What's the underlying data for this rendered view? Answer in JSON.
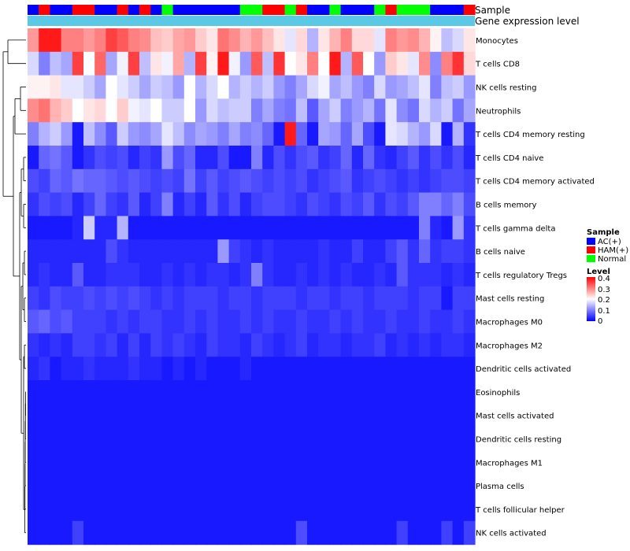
{
  "chart_data": {
    "type": "heatmap",
    "title": "",
    "annotation_rows": [
      "Sample",
      "Gene expression level"
    ],
    "sample_groups": [
      "AC(+)",
      "HAM(+)",
      "AC(+)",
      "AC(+)",
      "HAM(+)",
      "HAM(+)",
      "AC(+)",
      "AC(+)",
      "HAM(+)",
      "AC(+)",
      "HAM(+)",
      "AC(+)",
      "Normal",
      "AC(+)",
      "AC(+)",
      "AC(+)",
      "AC(+)",
      "AC(+)",
      "AC(+)",
      "Normal",
      "Normal",
      "HAM(+)",
      "HAM(+)",
      "Normal",
      "HAM(+)",
      "AC(+)",
      "AC(+)",
      "Normal",
      "AC(+)",
      "AC(+)",
      "AC(+)",
      "Normal",
      "HAM(+)",
      "Normal",
      "Normal",
      "Normal",
      "AC(+)",
      "AC(+)",
      "AC(+)",
      "HAM(+)"
    ],
    "legend": {
      "sample_title": "Sample",
      "sample_entries": [
        {
          "label": "AC(+)",
          "color": "#0000ff"
        },
        {
          "label": "HAM(+)",
          "color": "#ff0000"
        },
        {
          "label": "Normal",
          "color": "#00ff00"
        }
      ],
      "level_title": "Level",
      "level_ticks": [
        "0.4",
        "0.3",
        "0.2",
        "0.1",
        "0"
      ],
      "level_range": [
        0,
        0.4
      ]
    },
    "colors": {
      "low": "#0000ff",
      "mid": "#ffffff",
      "high": "#ff0000",
      "expression_bar": "#5bc8e6",
      "dendrogram": "#000000"
    },
    "rows": [
      "Monocytes",
      "T cells CD8",
      "NK cells resting",
      "Neutrophils",
      "T cells CD4 memory resting",
      "T cells CD4 naive",
      "T cells CD4 memory activated",
      "B cells memory",
      "T cells gamma delta",
      "B cells naive",
      "T cells regulatory  Tregs",
      "Mast cells resting",
      "Macrophages M0",
      "Macrophages M2",
      "Dendritic cells activated",
      "Eosinophils",
      "Mast cells activated",
      "Dendritic cells resting",
      "Macrophages M1",
      "Plasma cells",
      "T cells follicular helper",
      "NK cells activated"
    ],
    "values": [
      [
        0.28,
        0.38,
        0.38,
        0.3,
        0.3,
        0.28,
        0.3,
        0.35,
        0.33,
        0.3,
        0.29,
        0.25,
        0.24,
        0.27,
        0.28,
        0.24,
        0.22,
        0.31,
        0.29,
        0.26,
        0.28,
        0.25,
        0.22,
        0.18,
        0.23,
        0.14,
        0.22,
        0.26,
        0.3,
        0.23,
        0.23,
        0.18,
        0.3,
        0.28,
        0.29,
        0.26,
        0.21,
        0.15,
        0.17,
        0.22
      ],
      [
        0.17,
        0.1,
        0.15,
        0.13,
        0.35,
        0.2,
        0.32,
        0.13,
        0.19,
        0.35,
        0.15,
        0.22,
        0.19,
        0.27,
        0.14,
        0.35,
        0.21,
        0.38,
        0.19,
        0.12,
        0.33,
        0.15,
        0.36,
        0.2,
        0.22,
        0.3,
        0.2,
        0.38,
        0.14,
        0.33,
        0.2,
        0.12,
        0.24,
        0.22,
        0.18,
        0.29,
        0.11,
        0.3,
        0.36,
        0.23
      ],
      [
        0.21,
        0.21,
        0.22,
        0.18,
        0.18,
        0.16,
        0.13,
        0.2,
        0.18,
        0.16,
        0.13,
        0.16,
        0.15,
        0.12,
        0.2,
        0.14,
        0.17,
        0.2,
        0.14,
        0.16,
        0.14,
        0.16,
        0.12,
        0.1,
        0.13,
        0.17,
        0.19,
        0.13,
        0.15,
        0.12,
        0.1,
        0.17,
        0.12,
        0.13,
        0.15,
        0.18,
        0.1,
        0.15,
        0.16,
        0.12
      ],
      [
        0.29,
        0.31,
        0.26,
        0.24,
        0.2,
        0.22,
        0.23,
        0.2,
        0.24,
        0.19,
        0.18,
        0.2,
        0.16,
        0.16,
        0.2,
        0.12,
        0.17,
        0.15,
        0.16,
        0.16,
        0.1,
        0.13,
        0.1,
        0.09,
        0.15,
        0.07,
        0.13,
        0.16,
        0.1,
        0.12,
        0.14,
        0.09,
        0.18,
        0.11,
        0.09,
        0.17,
        0.14,
        0.16,
        0.09,
        0.13
      ],
      [
        0.1,
        0.14,
        0.16,
        0.12,
        0.02,
        0.15,
        0.11,
        0.07,
        0.16,
        0.12,
        0.11,
        0.13,
        0.18,
        0.15,
        0.11,
        0.13,
        0.12,
        0.1,
        0.13,
        0.1,
        0.11,
        0.08,
        0.02,
        0.38,
        0.08,
        0.02,
        0.13,
        0.12,
        0.08,
        0.13,
        0.06,
        0.02,
        0.18,
        0.17,
        0.14,
        0.12,
        0.17,
        0.02,
        0.14,
        0.04
      ],
      [
        0.02,
        0.08,
        0.09,
        0.07,
        0.02,
        0.04,
        0.06,
        0.05,
        0.06,
        0.03,
        0.05,
        0.04,
        0.12,
        0.06,
        0.08,
        0.03,
        0.03,
        0.06,
        0.02,
        0.02,
        0.1,
        0.03,
        0.06,
        0.04,
        0.06,
        0.07,
        0.04,
        0.05,
        0.08,
        0.03,
        0.08,
        0.04,
        0.03,
        0.05,
        0.07,
        0.04,
        0.06,
        0.04,
        0.06,
        0.03
      ],
      [
        0.06,
        0.05,
        0.08,
        0.07,
        0.09,
        0.08,
        0.08,
        0.07,
        0.06,
        0.07,
        0.06,
        0.05,
        0.06,
        0.05,
        0.09,
        0.05,
        0.07,
        0.05,
        0.06,
        0.07,
        0.06,
        0.05,
        0.06,
        0.05,
        0.06,
        0.04,
        0.05,
        0.06,
        0.07,
        0.04,
        0.05,
        0.06,
        0.05,
        0.04,
        0.05,
        0.04,
        0.05,
        0.06,
        0.06,
        0.05
      ],
      [
        0.04,
        0.06,
        0.05,
        0.06,
        0.03,
        0.05,
        0.08,
        0.05,
        0.04,
        0.07,
        0.03,
        0.05,
        0.1,
        0.03,
        0.05,
        0.03,
        0.07,
        0.04,
        0.06,
        0.03,
        0.05,
        0.06,
        0.06,
        0.05,
        0.04,
        0.06,
        0.05,
        0.04,
        0.06,
        0.05,
        0.07,
        0.04,
        0.06,
        0.05,
        0.07,
        0.1,
        0.1,
        0.08,
        0.1,
        0.06
      ],
      [
        0.02,
        0.02,
        0.02,
        0.02,
        0.03,
        0.16,
        0.03,
        0.03,
        0.14,
        0.02,
        0.02,
        0.02,
        0.02,
        0.02,
        0.02,
        0.02,
        0.02,
        0.02,
        0.02,
        0.02,
        0.02,
        0.02,
        0.02,
        0.02,
        0.02,
        0.02,
        0.02,
        0.02,
        0.02,
        0.02,
        0.02,
        0.02,
        0.02,
        0.02,
        0.02,
        0.1,
        0.03,
        0.02,
        0.12,
        0.04
      ],
      [
        0.03,
        0.03,
        0.03,
        0.03,
        0.03,
        0.03,
        0.03,
        0.06,
        0.04,
        0.03,
        0.03,
        0.03,
        0.03,
        0.03,
        0.03,
        0.03,
        0.03,
        0.12,
        0.05,
        0.04,
        0.03,
        0.04,
        0.03,
        0.03,
        0.03,
        0.03,
        0.04,
        0.03,
        0.03,
        0.05,
        0.03,
        0.03,
        0.05,
        0.07,
        0.04,
        0.08,
        0.04,
        0.05,
        0.05,
        0.04
      ],
      [
        0.03,
        0.04,
        0.03,
        0.03,
        0.07,
        0.03,
        0.03,
        0.04,
        0.04,
        0.04,
        0.03,
        0.03,
        0.04,
        0.03,
        0.04,
        0.03,
        0.04,
        0.04,
        0.03,
        0.04,
        0.1,
        0.04,
        0.03,
        0.03,
        0.04,
        0.03,
        0.04,
        0.03,
        0.04,
        0.03,
        0.03,
        0.04,
        0.03,
        0.07,
        0.04,
        0.04,
        0.04,
        0.03,
        0.04,
        0.03
      ],
      [
        0.05,
        0.04,
        0.06,
        0.05,
        0.05,
        0.06,
        0.05,
        0.06,
        0.05,
        0.06,
        0.05,
        0.04,
        0.05,
        0.04,
        0.05,
        0.05,
        0.05,
        0.04,
        0.05,
        0.05,
        0.04,
        0.05,
        0.05,
        0.05,
        0.04,
        0.05,
        0.05,
        0.04,
        0.05,
        0.05,
        0.04,
        0.05,
        0.05,
        0.05,
        0.04,
        0.05,
        0.05,
        0.02,
        0.05,
        0.05
      ],
      [
        0.07,
        0.08,
        0.06,
        0.07,
        0.05,
        0.05,
        0.05,
        0.04,
        0.05,
        0.04,
        0.05,
        0.05,
        0.04,
        0.04,
        0.05,
        0.04,
        0.05,
        0.04,
        0.04,
        0.05,
        0.04,
        0.05,
        0.04,
        0.04,
        0.05,
        0.04,
        0.04,
        0.05,
        0.04,
        0.05,
        0.04,
        0.04,
        0.05,
        0.04,
        0.04,
        0.05,
        0.04,
        0.04,
        0.05,
        0.04
      ],
      [
        0.04,
        0.03,
        0.04,
        0.03,
        0.05,
        0.05,
        0.04,
        0.05,
        0.03,
        0.05,
        0.03,
        0.05,
        0.04,
        0.05,
        0.04,
        0.03,
        0.05,
        0.04,
        0.04,
        0.03,
        0.05,
        0.04,
        0.03,
        0.04,
        0.05,
        0.03,
        0.04,
        0.04,
        0.03,
        0.04,
        0.04,
        0.05,
        0.03,
        0.04,
        0.03,
        0.04,
        0.03,
        0.04,
        0.04,
        0.03
      ],
      [
        0.03,
        0.04,
        0.02,
        0.03,
        0.03,
        0.04,
        0.03,
        0.03,
        0.03,
        0.04,
        0.03,
        0.03,
        0.02,
        0.03,
        0.02,
        0.03,
        0.02,
        0.02,
        0.02,
        0.03,
        0.02,
        0.02,
        0.02,
        0.02,
        0.02,
        0.02,
        0.02,
        0.02,
        0.02,
        0.02,
        0.02,
        0.02,
        0.02,
        0.02,
        0.02,
        0.02,
        0.02,
        0.02,
        0.02,
        0.02
      ],
      [
        0.02,
        0.02,
        0.02,
        0.02,
        0.02,
        0.02,
        0.02,
        0.02,
        0.02,
        0.02,
        0.02,
        0.02,
        0.02,
        0.02,
        0.02,
        0.02,
        0.02,
        0.02,
        0.02,
        0.02,
        0.02,
        0.02,
        0.02,
        0.02,
        0.02,
        0.02,
        0.02,
        0.02,
        0.02,
        0.02,
        0.02,
        0.02,
        0.02,
        0.02,
        0.02,
        0.02,
        0.02,
        0.02,
        0.02,
        0.02
      ],
      [
        0.02,
        0.02,
        0.02,
        0.02,
        0.02,
        0.02,
        0.02,
        0.02,
        0.02,
        0.02,
        0.02,
        0.02,
        0.02,
        0.02,
        0.02,
        0.02,
        0.02,
        0.02,
        0.02,
        0.02,
        0.02,
        0.02,
        0.02,
        0.02,
        0.02,
        0.02,
        0.02,
        0.02,
        0.02,
        0.02,
        0.02,
        0.02,
        0.02,
        0.02,
        0.02,
        0.02,
        0.02,
        0.02,
        0.02,
        0.02
      ],
      [
        0.02,
        0.02,
        0.02,
        0.02,
        0.02,
        0.02,
        0.02,
        0.02,
        0.02,
        0.02,
        0.02,
        0.02,
        0.02,
        0.02,
        0.02,
        0.02,
        0.02,
        0.02,
        0.02,
        0.02,
        0.02,
        0.02,
        0.02,
        0.02,
        0.02,
        0.02,
        0.02,
        0.02,
        0.02,
        0.02,
        0.02,
        0.02,
        0.02,
        0.02,
        0.02,
        0.02,
        0.02,
        0.02,
        0.02,
        0.02
      ],
      [
        0.02,
        0.02,
        0.02,
        0.02,
        0.02,
        0.02,
        0.02,
        0.02,
        0.02,
        0.02,
        0.02,
        0.02,
        0.02,
        0.02,
        0.02,
        0.02,
        0.02,
        0.02,
        0.02,
        0.02,
        0.02,
        0.02,
        0.02,
        0.02,
        0.02,
        0.02,
        0.02,
        0.02,
        0.02,
        0.02,
        0.02,
        0.02,
        0.02,
        0.02,
        0.02,
        0.02,
        0.02,
        0.02,
        0.02,
        0.02
      ],
      [
        0.02,
        0.02,
        0.02,
        0.02,
        0.02,
        0.02,
        0.02,
        0.02,
        0.02,
        0.02,
        0.02,
        0.02,
        0.02,
        0.02,
        0.02,
        0.02,
        0.02,
        0.02,
        0.02,
        0.02,
        0.02,
        0.02,
        0.02,
        0.02,
        0.02,
        0.02,
        0.02,
        0.02,
        0.02,
        0.02,
        0.02,
        0.02,
        0.02,
        0.02,
        0.02,
        0.02,
        0.02,
        0.02,
        0.02,
        0.02
      ],
      [
        0.02,
        0.02,
        0.02,
        0.02,
        0.02,
        0.02,
        0.02,
        0.02,
        0.02,
        0.02,
        0.02,
        0.02,
        0.02,
        0.02,
        0.02,
        0.02,
        0.02,
        0.02,
        0.02,
        0.02,
        0.02,
        0.02,
        0.02,
        0.02,
        0.02,
        0.02,
        0.02,
        0.02,
        0.02,
        0.02,
        0.02,
        0.02,
        0.02,
        0.02,
        0.02,
        0.02,
        0.02,
        0.02,
        0.02,
        0.02
      ],
      [
        0.02,
        0.02,
        0.02,
        0.02,
        0.05,
        0.02,
        0.02,
        0.02,
        0.02,
        0.02,
        0.02,
        0.02,
        0.02,
        0.02,
        0.02,
        0.02,
        0.02,
        0.02,
        0.02,
        0.02,
        0.02,
        0.02,
        0.02,
        0.02,
        0.06,
        0.02,
        0.02,
        0.02,
        0.02,
        0.02,
        0.02,
        0.02,
        0.02,
        0.05,
        0.02,
        0.02,
        0.02,
        0.05,
        0.02,
        0.05
      ]
    ]
  }
}
